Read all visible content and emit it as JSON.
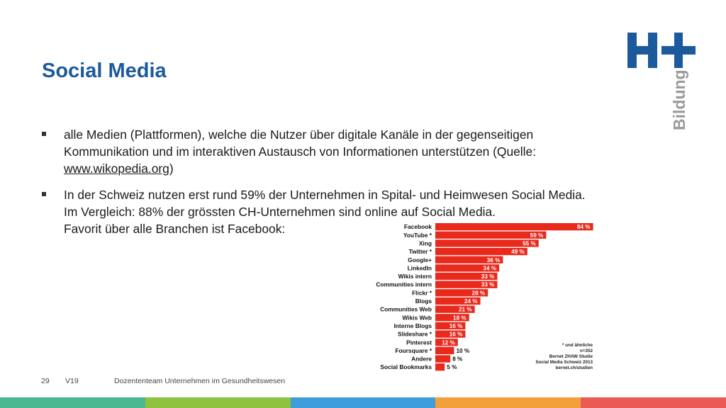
{
  "slide": {
    "title": "Social Media",
    "logo_text": "Bildung",
    "bullets": [
      {
        "lines": [
          "alle Medien (Plattformen), welche die Nutzer über digitale Kanäle in der gegenseitigen",
          "Kommunikation und im interaktiven Austausch von Informationen unterstützen (Quelle:"
        ],
        "link_text": "www.wikopedia.org",
        "link_suffix": ")"
      },
      {
        "lines": [
          "In der Schweiz nutzen erst rund 59% der Unternehmen in Spital- und Heimwesen Social Media.",
          "Im Vergleich: 88% der grössten CH-Unternehmen sind online auf Social Media.",
          "Favorit über alle Branchen ist Facebook:"
        ]
      }
    ],
    "notes": [
      "* und ähnliche",
      "n=352",
      "Bernet ZHAW Studie",
      "Social Media Schweiz 2013",
      "bernet.ch/studien"
    ]
  },
  "footer": {
    "page_number": "29",
    "version": "V19",
    "team": "Dozententeam Unternehmen im Gesundheitswesen"
  },
  "colors": {
    "title": "#1c5a9c",
    "logo": "#1c5a9c",
    "logo_text": "#9a9a9a",
    "bar": "#e8291c",
    "bar_last": "#e8291c",
    "footer_segments": [
      "#4bb892",
      "#8fc23e",
      "#3f9ddb",
      "#f3a03a",
      "#ea5b53"
    ]
  },
  "chart_data": {
    "type": "bar",
    "orientation": "horizontal",
    "categories": [
      "Facebook",
      "YouTube *",
      "Xing",
      "Twitter *",
      "Google+",
      "LinkedIn",
      "Wikis intern",
      "Communities intern",
      "Flickr *",
      "Blogs",
      "Communities Web",
      "Wikis Web",
      "Interne Blogs",
      "Slideshare *",
      "Pinterest",
      "Foursquare *",
      "Andere",
      "Social Bookmarks"
    ],
    "values": [
      84,
      59,
      55,
      49,
      36,
      34,
      33,
      33,
      28,
      24,
      21,
      18,
      16,
      16,
      12,
      10,
      8,
      5
    ],
    "value_labels": [
      "84 %",
      "59 %",
      "55 %",
      "49 %",
      "36 %",
      "34 %",
      "33 %",
      "33 %",
      "28 %",
      "24 %",
      "21 %",
      "18 %",
      "16 %",
      "16 %",
      "12 %",
      "10 %",
      "8 %",
      "5 %"
    ],
    "xlim": [
      0,
      100
    ],
    "grid": false,
    "legend": "none"
  }
}
